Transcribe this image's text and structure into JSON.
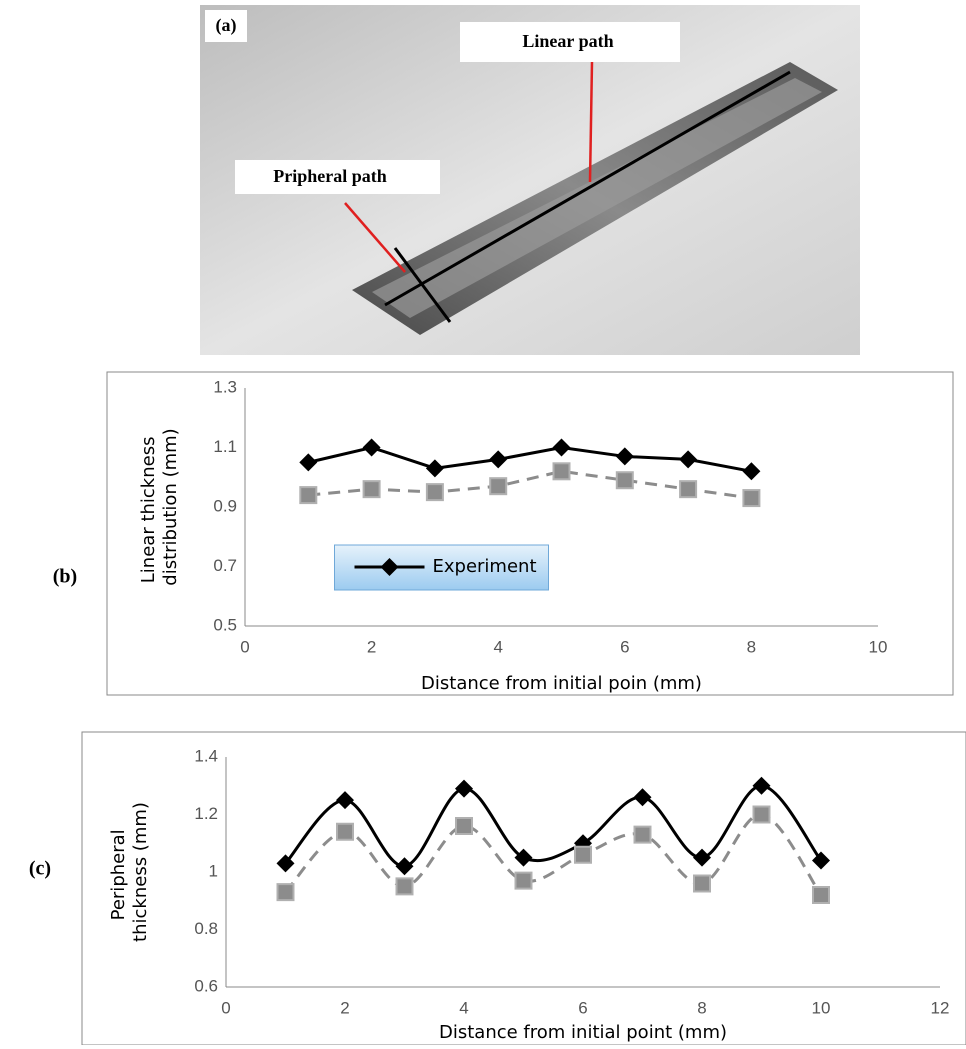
{
  "panel_a": {
    "label": "(a)",
    "linear_label": "Linear path",
    "peripheral_label": "Pripheral path"
  },
  "chart_data": [
    {
      "type": "line",
      "panel_label": "(b)",
      "x_label": "Distance from initial poin (mm)",
      "y_label": "Linear thickness distribution (mm)",
      "x": [
        1,
        2,
        3,
        4,
        5,
        6,
        7,
        8
      ],
      "series": [
        {
          "name": "Experiment",
          "color": "#000000",
          "marker": "diamond",
          "line_style": "solid",
          "values": [
            1.05,
            1.1,
            1.03,
            1.06,
            1.1,
            1.07,
            1.06,
            1.02
          ]
        },
        {
          "color": "#8c8c8c",
          "marker": "square",
          "line_style": "dashed",
          "values": [
            0.94,
            0.96,
            0.95,
            0.97,
            1.02,
            0.99,
            0.96,
            0.93
          ]
        }
      ],
      "xlim": [
        0,
        10
      ],
      "xticks": [
        0,
        2,
        4,
        6,
        8,
        10
      ],
      "ylim": [
        0.5,
        1.3
      ],
      "yticks": [
        0.5,
        0.7,
        0.9,
        1.1,
        1.3
      ],
      "smooth": false,
      "grid": false,
      "legend": "center"
    },
    {
      "type": "line",
      "panel_label": "(c)",
      "x_label": "Distance from initial point (mm)",
      "y_label": "Peripheral thickness (mm)",
      "x": [
        1,
        2,
        3,
        4,
        5,
        6,
        7,
        8,
        9,
        10
      ],
      "series": [
        {
          "color": "#000000",
          "marker": "diamond",
          "line_style": "solid",
          "values": [
            1.03,
            1.25,
            1.02,
            1.29,
            1.05,
            1.1,
            1.26,
            1.05,
            1.3,
            1.04
          ]
        },
        {
          "color": "#8c8c8c",
          "marker": "square",
          "line_style": "dashed",
          "values": [
            0.93,
            1.14,
            0.95,
            1.16,
            0.97,
            1.06,
            1.13,
            0.96,
            1.2,
            0.92
          ]
        }
      ],
      "xlim": [
        0,
        12
      ],
      "xticks": [
        0,
        2,
        4,
        6,
        8,
        10,
        12
      ],
      "ylim": [
        0.6,
        1.4
      ],
      "yticks": [
        0.6,
        0.8,
        1,
        1.2,
        1.4
      ],
      "smooth": true,
      "grid": false
    }
  ]
}
